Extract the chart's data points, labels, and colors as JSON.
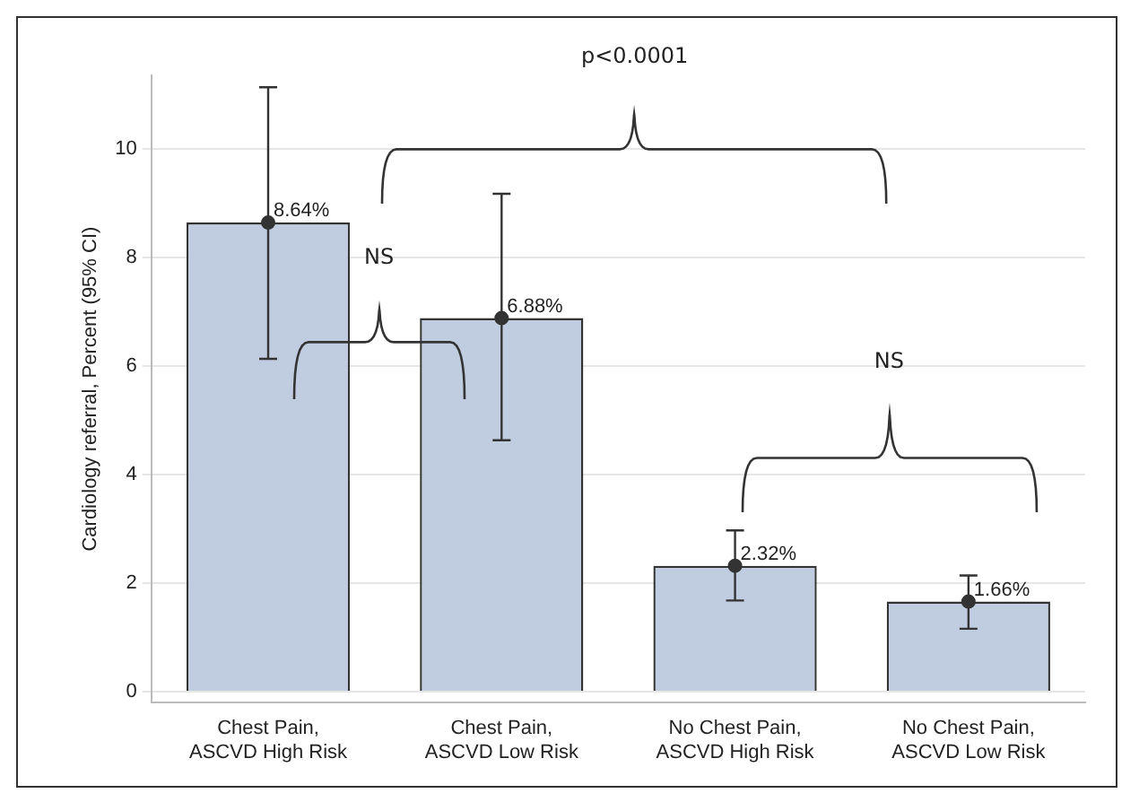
{
  "chart_data": {
    "type": "bar",
    "ylabel": "Cardiology referral, Percent (95% CI)",
    "categories": [
      "Chest Pain, ASCVD High Risk",
      "Chest Pain, ASCVD Low Risk",
      "No Chest Pain, ASCVD High Risk",
      "No Chest Pain, ASCVD Low Risk"
    ],
    "series": [
      {
        "color": "#c0cde0",
        "values": [
          8.64,
          6.88,
          2.32,
          1.66
        ]
      },
      {
        "type": "scatter",
        "color": "#333333",
        "marker": "circle",
        "x": [
          "Chest Pain, ASCVD High Risk",
          "Chest Pain, ASCVD Low Risk",
          "No Chest Pain, ASCVD High Risk",
          "No Chest Pain, ASCVD Low Risk"
        ],
        "values": [
          8.64,
          6.88,
          2.32,
          1.66
        ],
        "value_labels": [
          "8.64%",
          "6.88%",
          "2.32%",
          "1.66%"
        ],
        "errors": [
          [
            6.13,
            11.13
          ],
          [
            4.63,
            9.17
          ],
          [
            1.68,
            2.97
          ],
          [
            1.16,
            2.14
          ]
        ]
      }
    ],
    "ylim": [
      -0.2,
      11.35
    ],
    "yticks": [
      0,
      2,
      4,
      6,
      8,
      10
    ],
    "grid": "y",
    "legend": false,
    "annotations": [
      "NS",
      "p<0.0001",
      "NS"
    ]
  }
}
